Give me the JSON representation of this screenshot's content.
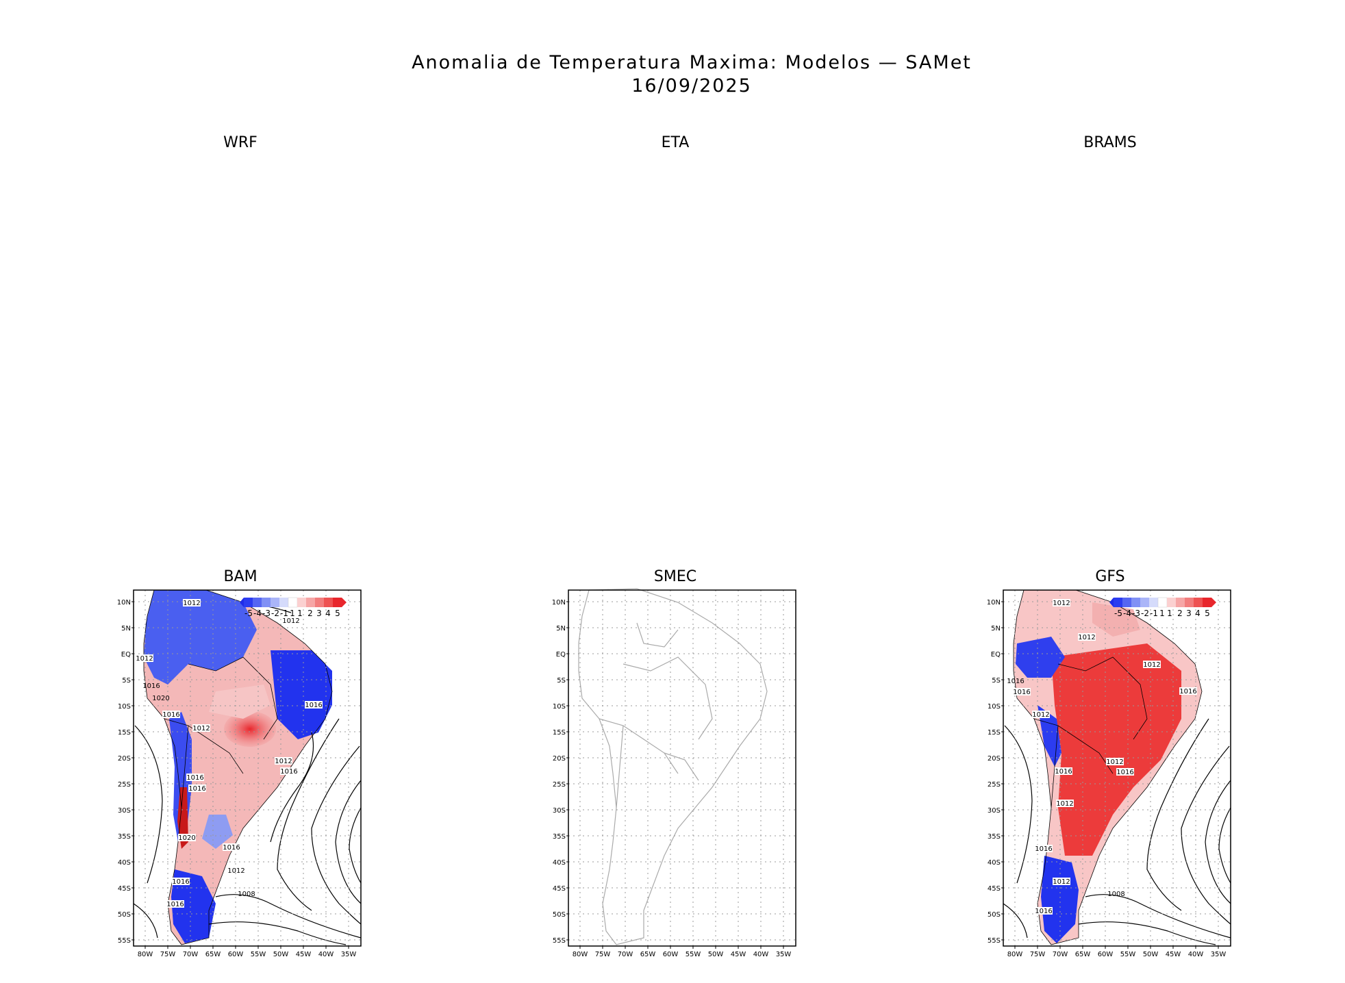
{
  "title": {
    "line1": "Anomalia de Temperatura Maxima: Modelos — SAMet",
    "line2": "16/09/2025"
  },
  "chart_data": [
    {
      "type": "heatmap",
      "title": "WRF",
      "status": "empty"
    },
    {
      "type": "heatmap",
      "title": "ETA",
      "status": "empty"
    },
    {
      "type": "heatmap",
      "title": "BRAMS",
      "status": "empty"
    },
    {
      "type": "heatmap",
      "title": "BAM",
      "variable": "Max temperature anomaly (shaded) + sea-level pressure isobars",
      "colorbar": {
        "labels": [
          "-5",
          "-4",
          "-3",
          "-2",
          "-1",
          "1",
          "1",
          "2",
          "3",
          "4",
          "5"
        ]
      },
      "isobar_labels": [
        "1012",
        "1012",
        "1012",
        "1016",
        "1016",
        "1012",
        "1016",
        "1016",
        "1016",
        "1012",
        "1016",
        "1020",
        "1020",
        "1016",
        "1012",
        "1008",
        "1016",
        "1016"
      ],
      "xlim": [
        "80W",
        "35W"
      ],
      "ylim": [
        "55S",
        "10N"
      ]
    },
    {
      "type": "heatmap",
      "title": "SMEC",
      "variable": "Map outline only (no data)",
      "xlim": [
        "80W",
        "35W"
      ],
      "ylim": [
        "55S",
        "10N"
      ]
    },
    {
      "type": "heatmap",
      "title": "GFS",
      "variable": "Max temperature anomaly (shaded) + sea-level pressure isobars",
      "colorbar": {
        "labels": [
          "-5",
          "-4",
          "-3",
          "-2",
          "-1",
          "1",
          "1",
          "2",
          "3",
          "4",
          "5"
        ]
      },
      "isobar_labels": [
        "1012",
        "1012",
        "1012",
        "1016",
        "1016",
        "1016",
        "1012",
        "1012",
        "1016",
        "1016",
        "1012",
        "1016",
        "1012",
        "1008",
        "1016"
      ],
      "xlim": [
        "80W",
        "35W"
      ],
      "ylim": [
        "55S",
        "10N"
      ]
    }
  ],
  "axes": {
    "lon_ticks": [
      "80W",
      "75W",
      "70W",
      "65W",
      "60W",
      "55W",
      "50W",
      "45W",
      "40W",
      "35W"
    ],
    "lat_ticks": [
      "10N",
      "5N",
      "EQ",
      "5S",
      "10S",
      "15S",
      "20S",
      "25S",
      "30S",
      "35S",
      "40S",
      "45S",
      "50S",
      "55S"
    ]
  }
}
